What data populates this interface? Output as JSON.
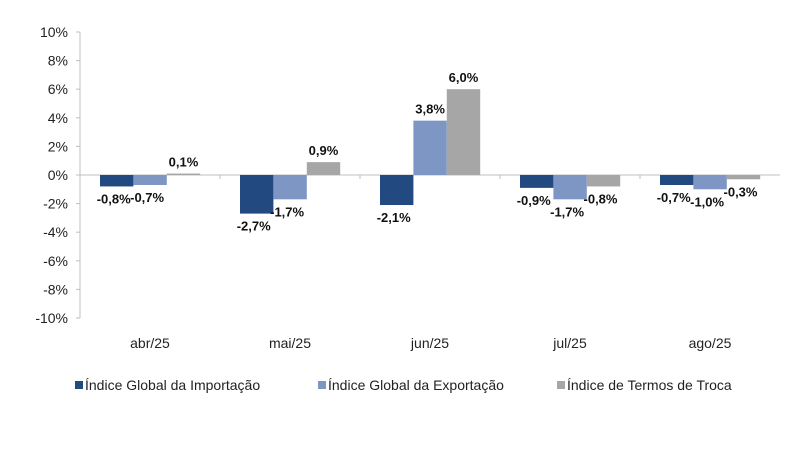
{
  "chart_data": {
    "type": "bar",
    "categories": [
      "abr/25",
      "mai/25",
      "jun/25",
      "jul/25",
      "ago/25"
    ],
    "series": [
      {
        "name": "Índice Global da Importação",
        "color": "#234a80",
        "values": [
          -0.8,
          -2.7,
          -2.1,
          -0.9,
          -0.7
        ],
        "labels": [
          "-0,8%",
          "-2,7%",
          "-2,1%",
          "-0,9%",
          "-0,7%"
        ]
      },
      {
        "name": "Índice Global da Exportação",
        "color": "#7e96c4",
        "values": [
          -0.7,
          -1.7,
          3.8,
          -1.7,
          -1.0
        ],
        "labels": [
          "-0,7%",
          "-1,7%",
          "3,8%",
          "-1,7%",
          "-1,0%"
        ]
      },
      {
        "name": "Índice de Termos de Troca",
        "color": "#a6a6a6",
        "values": [
          0.1,
          0.9,
          6.0,
          -0.8,
          -0.3
        ],
        "labels": [
          "0,1%",
          "0,9%",
          "6,0%",
          "-0,8%",
          "-0,3%"
        ]
      }
    ],
    "yticks": [
      10,
      8,
      6,
      4,
      2,
      0,
      -2,
      -4,
      -6,
      -8,
      -10
    ],
    "ytick_labels": [
      "10%",
      "8%",
      "6%",
      "4%",
      "2%",
      "0%",
      "-2%",
      "-4%",
      "-6%",
      "-8%",
      "-10%"
    ],
    "ylim": [
      -10,
      10
    ],
    "grid": false,
    "legend": "bottom"
  }
}
